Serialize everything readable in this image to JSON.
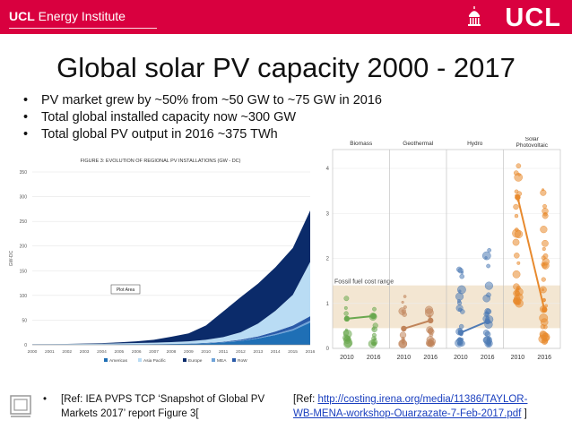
{
  "header": {
    "institute_bold": "UCL",
    "institute_rest": " Energy Institute",
    "logo": "UCL"
  },
  "slide": {
    "title": "Global solar PV capacity 2000 - 2017",
    "bullets": [
      "PV market grew by ~50% from ~50 GW to ~75 GW in 2016",
      "Total global installed capacity now ~300 GW",
      "Total global PV output in 2016 ~375 TWh"
    ]
  },
  "left_chart": {
    "title": "FIGURE 3: EVOLUTION OF REGIONAL PV INSTALLATIONS (GW - DC)",
    "ylabel": "GW-DC",
    "tooltip": "Plot Area",
    "legend": [
      "Americas",
      "Asia Pacific",
      "Europe",
      "MEA",
      "RoW"
    ],
    "colors": {
      "americas": "#1f6fb5",
      "asia_pacific": "#b9dcf4",
      "europe": "#0b2b6a",
      "mea": "#6fa3d8",
      "row": "#2a5aa8"
    }
  },
  "chart_data": [
    {
      "type": "area",
      "title": "FIGURE 3: EVOLUTION OF REGIONAL PV INSTALLATIONS (GW - DC)",
      "ylabel": "GW-DC",
      "ylim": [
        0,
        350
      ],
      "yticks": [
        "0",
        "50",
        "100",
        "150",
        "200",
        "250",
        "300",
        "350"
      ],
      "x": [
        "2000",
        "2001",
        "2002",
        "2003",
        "2004",
        "2005",
        "2006",
        "2007",
        "2008",
        "2009",
        "2010",
        "2011",
        "2012",
        "2013",
        "2014",
        "2015",
        "2016"
      ],
      "series": [
        {
          "name": "Americas",
          "values": [
            0.1,
            0.1,
            0.2,
            0.3,
            0.4,
            0.6,
            0.8,
            1,
            1.5,
            2,
            3,
            5,
            8,
            13,
            20,
            29,
            45
          ]
        },
        {
          "name": "Asia Pacific",
          "values": [
            0.8,
            1,
            1.2,
            1.5,
            1.8,
            2.2,
            2.6,
            3,
            3.6,
            4.6,
            6.5,
            9.5,
            15,
            26,
            42,
            62,
            110
          ]
        },
        {
          "name": "Europe",
          "values": [
            0.1,
            0.2,
            0.3,
            0.5,
            1,
            2,
            3.5,
            5.8,
            11,
            16,
            29,
            52,
            71,
            81,
            88,
            95,
            104
          ]
        },
        {
          "name": "MEA",
          "values": [
            0,
            0,
            0,
            0,
            0,
            0,
            0,
            0,
            0,
            0,
            0.1,
            0.2,
            0.5,
            1,
            2,
            3,
            4
          ]
        },
        {
          "name": "RoW",
          "values": [
            0.1,
            0.1,
            0.1,
            0.1,
            0.1,
            0.2,
            0.2,
            0.3,
            0.3,
            0.5,
            0.7,
            1,
            2,
            3,
            5,
            7,
            9
          ]
        }
      ]
    },
    {
      "type": "scatter",
      "title": "",
      "panels": [
        "Biomass",
        "Geothermal",
        "Hydro",
        "Solar Photovoltaic"
      ],
      "yticks": [
        "0",
        "1",
        "2",
        "3",
        "4"
      ],
      "ylim": [
        0,
        4.3
      ],
      "x_ticks": [
        "2010",
        "2016"
      ],
      "band_label": "Fossil fuel cost range",
      "band_range": [
        0.45,
        1.4
      ],
      "colors": {
        "biomass": "#6aa84f",
        "geothermal": "#c0845a",
        "hydro": "#4f7bb5",
        "solar": "#e88a2e",
        "band": "#f3e6d2"
      },
      "trend": [
        {
          "name": "Biomass",
          "values": [
            0.66,
            0.72
          ]
        },
        {
          "name": "Geothermal",
          "values": [
            0.44,
            0.62
          ]
        },
        {
          "name": "Hydro",
          "values": [
            0.35,
            0.6
          ]
        },
        {
          "name": "Solar Photovoltaic",
          "values": [
            3.36,
            0.86
          ]
        }
      ]
    }
  ],
  "refs": {
    "left_bullet": "•",
    "left": "[Ref: IEA PVPS TCP ‘Snapshot of Global PV Markets 2017’ report Figure 3[",
    "right_prefix": "[Ref: ",
    "right_link": "http://costing.irena.org/media/11386/TAYLOR-WB-MENA-workshop-Ouarzazate-7-Feb-2017.pdf",
    "right_suffix": " ]"
  }
}
